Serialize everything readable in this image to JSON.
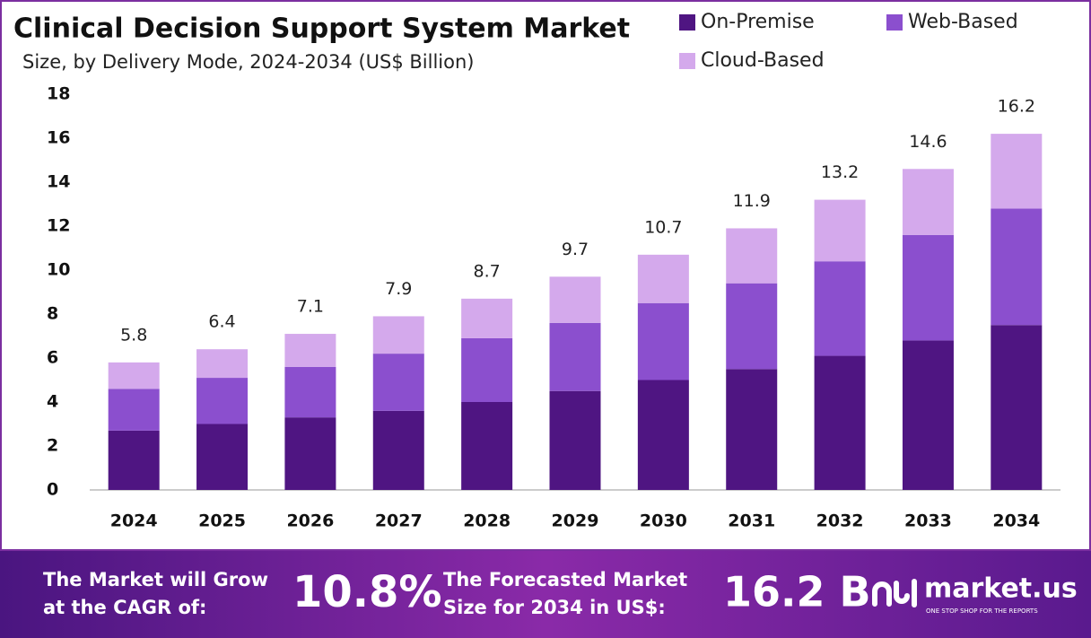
{
  "chart_data": {
    "type": "stacked-bar",
    "title": "Clinical Decision Support System Market",
    "subtitle": "Size, by Delivery Mode, 2024-2034 (US$ Billion)",
    "categories": [
      "2024",
      "2025",
      "2026",
      "2027",
      "2028",
      "2029",
      "2030",
      "2031",
      "2032",
      "2033",
      "2034"
    ],
    "series": [
      {
        "name": "On-Premise",
        "color": "#4f1582",
        "values": [
          2.7,
          3.0,
          3.3,
          3.6,
          4.0,
          4.5,
          5.0,
          5.5,
          6.1,
          6.8,
          7.5
        ]
      },
      {
        "name": "Web-Based",
        "color": "#8b4fce",
        "values": [
          1.9,
          2.1,
          2.3,
          2.6,
          2.9,
          3.1,
          3.5,
          3.9,
          4.3,
          4.8,
          5.3
        ]
      },
      {
        "name": "Cloud-Based",
        "color": "#d4a9ec",
        "values": [
          1.2,
          1.3,
          1.5,
          1.7,
          1.8,
          2.1,
          2.2,
          2.5,
          2.8,
          3.0,
          3.4
        ]
      }
    ],
    "totals": [
      5.8,
      6.4,
      7.1,
      7.9,
      8.7,
      9.7,
      10.7,
      11.9,
      13.2,
      14.6,
      16.2
    ],
    "ylim": [
      0,
      18
    ],
    "yticks": [
      0,
      2,
      4,
      6,
      8,
      10,
      12,
      14,
      16,
      18
    ],
    "grid": false
  },
  "footer": {
    "cagr_label": [
      "The Market will Grow",
      "at the CAGR of:"
    ],
    "cagr_value": "10.8%",
    "forecast_label": [
      "The Forecasted Market",
      "Size for 2034 in US$:"
    ],
    "forecast_value": "16.2 B",
    "brand": "market.us",
    "tagline": "ONE STOP SHOP FOR THE REPORTS"
  }
}
